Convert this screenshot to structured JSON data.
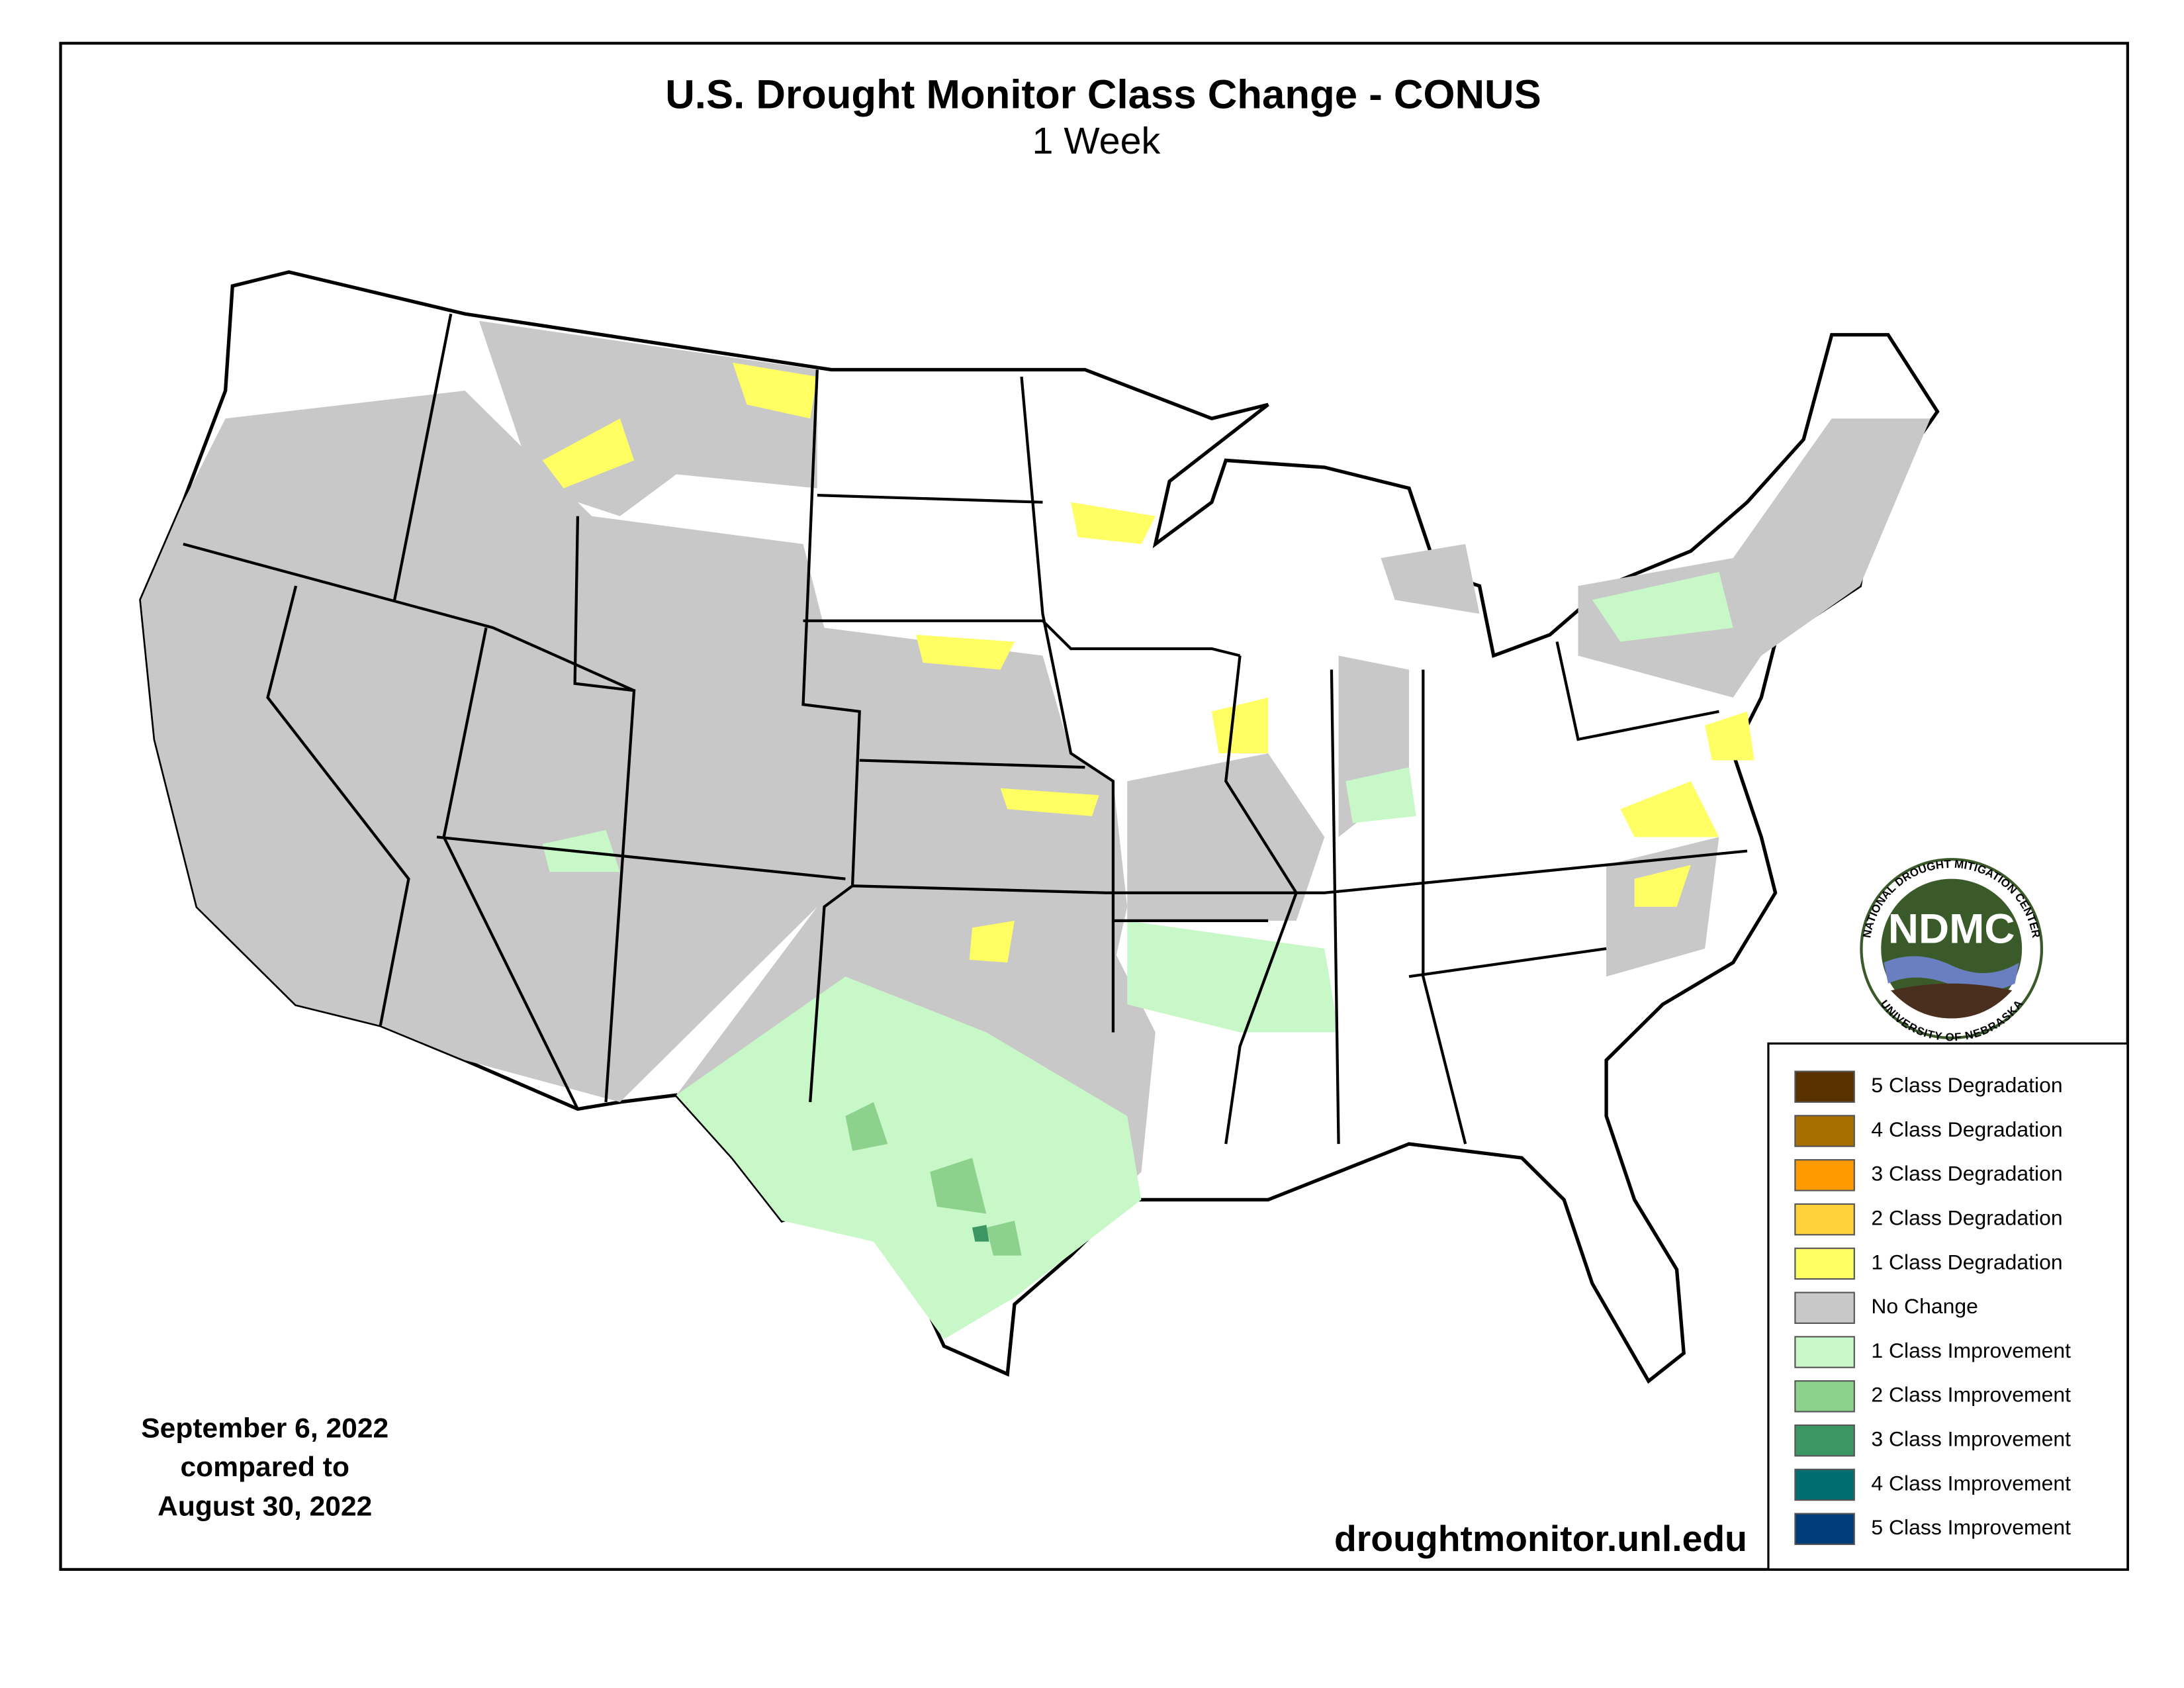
{
  "title": "U.S. Drought Monitor Class Change - CONUS",
  "subtitle": "1 Week",
  "date_lines": [
    "September 6, 2022",
    "compared to",
    "August 30, 2022"
  ],
  "website": "droughtmonitor.unl.edu",
  "logo": {
    "acronym": "NDMC",
    "ring_top": "NATIONAL DROUGHT MITIGATION CENTER",
    "ring_bottom": "UNIVERSITY OF NEBRASKA"
  },
  "legend": [
    {
      "label": "5 Class Degradation",
      "color": "#5a3200"
    },
    {
      "label": "4 Class Degradation",
      "color": "#a86f00"
    },
    {
      "label": "3 Class Degradation",
      "color": "#ff9a00"
    },
    {
      "label": "2 Class Degradation",
      "color": "#ffd23c"
    },
    {
      "label": "1 Class Degradation",
      "color": "#ffff64"
    },
    {
      "label": "No Change",
      "color": "#c8c8c8"
    },
    {
      "label": "1 Class Improvement",
      "color": "#c8f8c8"
    },
    {
      "label": "2 Class Improvement",
      "color": "#8cd28c"
    },
    {
      "label": "3 Class Improvement",
      "color": "#3c9664"
    },
    {
      "label": "4 Class Improvement",
      "color": "#006e6e"
    },
    {
      "label": "5 Class Improvement",
      "color": "#003c78"
    }
  ]
}
